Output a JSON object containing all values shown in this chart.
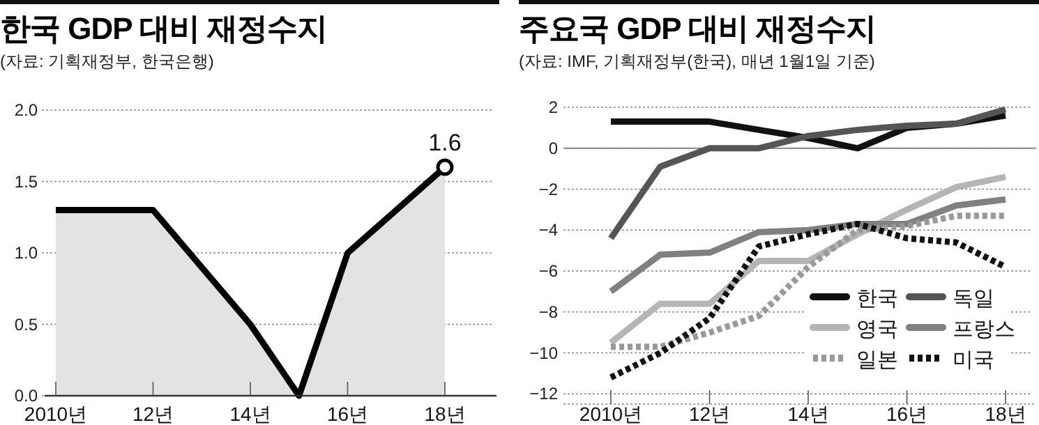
{
  "chart_data": [
    {
      "type": "area",
      "title": "한국 GDP 대비 재정수지",
      "subtitle": "(자료: 기획재정부, 한국은행)",
      "categories": [
        "2010년",
        null,
        "12년",
        null,
        "14년",
        null,
        "16년",
        null,
        "18년"
      ],
      "series": [
        {
          "color": "#000000",
          "values": [
            1.3,
            1.3,
            1.3,
            0.9,
            0.5,
            0.0,
            1.0,
            1.3,
            1.6
          ],
          "value_labels": [
            null,
            null,
            null,
            null,
            null,
            null,
            null,
            null,
            "1.6"
          ]
        }
      ],
      "ylim": [
        0,
        2.0
      ],
      "yticks": [
        {
          "value": 0,
          "label": "0.0"
        },
        {
          "value": 0.5,
          "label": "0.5"
        },
        {
          "value": 1,
          "label": "1.0"
        },
        {
          "value": 1.5,
          "label": "1.5"
        },
        {
          "value": 2,
          "label": "2.0"
        }
      ],
      "grid": "y"
    },
    {
      "type": "line",
      "title": "주요국 GDP 대비 재정수지",
      "subtitle": "(자료: IMF, 기획재정부(한국), 매년 1월1일 기준)",
      "categories": [
        "2010년",
        null,
        "12년",
        null,
        "14년",
        null,
        "16년",
        null,
        "18년"
      ],
      "series": [
        {
          "name": "한국",
          "color": "#111111",
          "line_style": "solid",
          "values": [
            1.3,
            1.3,
            1.3,
            0.9,
            0.5,
            0.0,
            1.0,
            1.2,
            1.6
          ]
        },
        {
          "name": "독일",
          "color": "#555555",
          "line_style": "solid",
          "values": [
            -4.4,
            -0.9,
            0.0,
            0.0,
            0.6,
            0.9,
            1.1,
            1.2,
            1.9
          ]
        },
        {
          "name": "영국",
          "color": "#b5b5b5",
          "line_style": "solid",
          "values": [
            -9.5,
            -7.6,
            -7.6,
            -5.5,
            -5.5,
            -4.2,
            -3.0,
            -1.9,
            -1.4
          ]
        },
        {
          "name": "프랑스",
          "color": "#808080",
          "line_style": "solid",
          "values": [
            -7.0,
            -5.2,
            -5.1,
            -4.1,
            -4.0,
            -3.7,
            -3.7,
            -2.8,
            -2.5
          ]
        },
        {
          "name": "일본",
          "color": "#999999",
          "line_style": "dotted",
          "values": [
            -9.7,
            -9.7,
            -9.0,
            -8.2,
            -5.8,
            -4.0,
            -3.8,
            -3.3,
            -3.3
          ]
        },
        {
          "name": "미국",
          "color": "#111111",
          "line_style": "dotted",
          "values": [
            -11.2,
            -10.0,
            -8.3,
            -4.8,
            -4.2,
            -3.7,
            -4.4,
            -4.6,
            -5.8
          ]
        }
      ],
      "ylim": [
        -12.5,
        2
      ],
      "yticks": [
        {
          "value": 2,
          "label": "2"
        },
        {
          "value": 0,
          "label": "0"
        },
        {
          "value": -2,
          "label": "−2"
        },
        {
          "value": -4,
          "label": "−4"
        },
        {
          "value": -6,
          "label": "−6"
        },
        {
          "value": -8,
          "label": "−8"
        },
        {
          "value": -10,
          "label": "−10"
        },
        {
          "value": -12,
          "label": "−12"
        }
      ],
      "grid": "y",
      "legend": "bottom right",
      "ref_lines": [
        {
          "axis": "y",
          "value": 0,
          "color": "#888888"
        }
      ]
    }
  ]
}
